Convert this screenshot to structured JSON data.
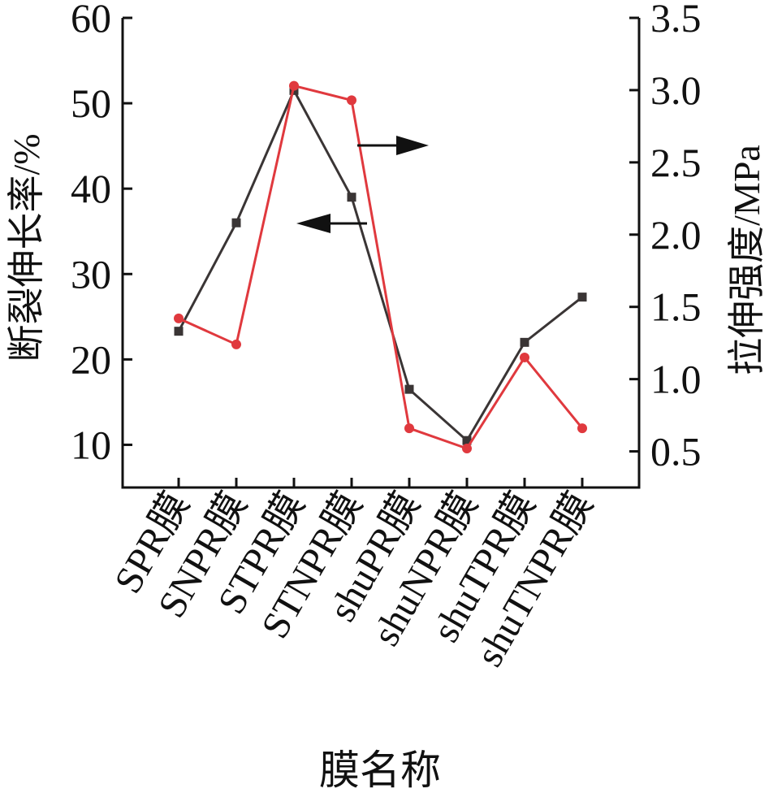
{
  "chart_data": {
    "type": "line",
    "xlabel": "膜名称",
    "ylabel_left": "断裂伸长率/%",
    "ylabel_right": "拉伸强度/MPa",
    "categories": [
      "SPR膜",
      "SNPR膜",
      "STPR膜",
      "STNPR膜",
      "shuPR膜",
      "shuNPR膜",
      "shuTPR膜",
      "shuTNPR膜"
    ],
    "ylim_left": [
      5,
      60
    ],
    "ylim_right": [
      0.25,
      3.5
    ],
    "yticks_left": [
      10,
      20,
      30,
      40,
      50,
      60
    ],
    "yticks_right": [
      0.5,
      1.0,
      1.5,
      2.0,
      2.5,
      3.0,
      3.5
    ],
    "series": [
      {
        "axis": "left",
        "marker": "square",
        "color": "#3a3535",
        "x_positions": [
          1,
          2,
          3,
          4,
          5,
          6,
          7,
          8
        ],
        "values": [
          23.3,
          36.0,
          51.5,
          39.0,
          16.5,
          10.5,
          22.0,
          27.3
        ]
      },
      {
        "axis": "right",
        "marker": "circle",
        "color": "#e0393e",
        "x_positions": [
          1,
          2,
          3,
          4,
          5,
          6,
          7,
          8
        ],
        "values": [
          1.42,
          1.24,
          3.03,
          2.93,
          0.66,
          0.52,
          1.15,
          0.66
        ]
      }
    ],
    "annotations": [
      {
        "type": "arrow",
        "direction": "right",
        "points_to": "right-axis"
      },
      {
        "type": "arrow",
        "direction": "left",
        "points_to": "left-axis"
      }
    ],
    "grid": false,
    "legend": "none"
  }
}
